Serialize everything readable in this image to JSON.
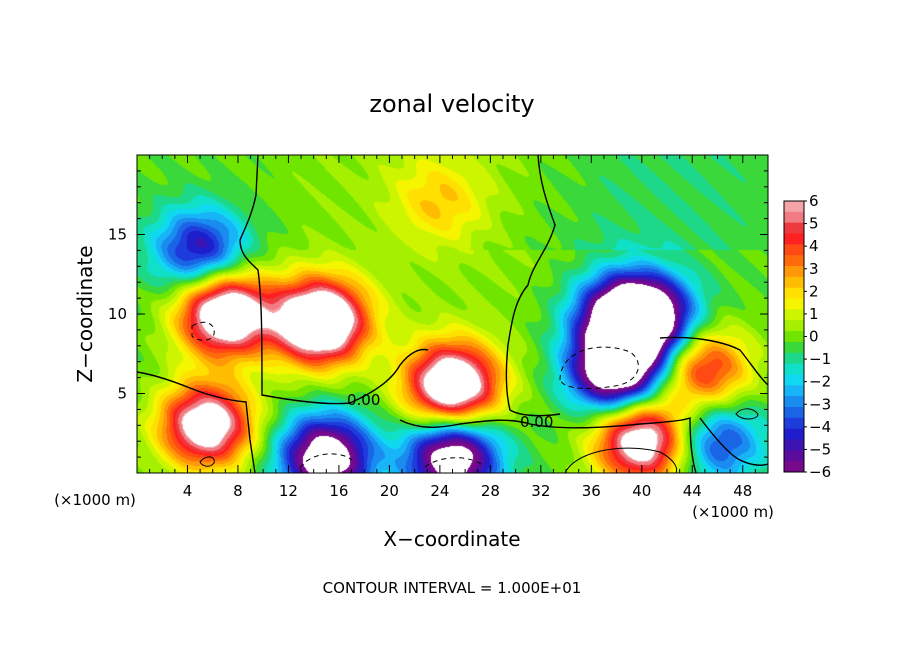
{
  "chart_data": {
    "type": "heatmap",
    "title": "zonal velocity",
    "xlabel": "X−coordinate",
    "ylabel": "Z−coordinate",
    "x_unit_left": "(×1000 m)",
    "x_unit_right": "(×1000 m)",
    "x_ticks": [
      "4",
      "8",
      "12",
      "16",
      "20",
      "24",
      "28",
      "32",
      "36",
      "40",
      "44",
      "48"
    ],
    "x_tick_values": [
      4,
      8,
      12,
      16,
      20,
      24,
      28,
      32,
      36,
      40,
      44,
      48
    ],
    "y_ticks": [
      "5",
      "10",
      "15"
    ],
    "y_tick_values": [
      5,
      10,
      15
    ],
    "xlim": [
      0,
      50
    ],
    "ylim": [
      0,
      20
    ],
    "colorbar": {
      "labels": [
        "6",
        "5",
        "4",
        "3",
        "2",
        "1",
        "0",
        "−1",
        "−2",
        "−3",
        "−4",
        "−5",
        "−6"
      ],
      "levels": [
        6,
        5.5,
        5,
        4.5,
        4,
        3.5,
        3,
        2.5,
        2,
        1.5,
        1,
        0.5,
        0,
        -0.5,
        -1,
        -1.5,
        -2,
        -2.5,
        -3,
        -3.5,
        -4,
        -4.5,
        -5,
        -5.5,
        -6
      ],
      "colors": [
        "#f4a3a6",
        "#f27a82",
        "#ee3a3e",
        "#ff2020",
        "#ff4a14",
        "#ff6a0a",
        "#ff9808",
        "#ffbc00",
        "#ffe000",
        "#f5f500",
        "#cdf500",
        "#a5f000",
        "#70e600",
        "#3ad83a",
        "#1ed88a",
        "#10e0c8",
        "#10d8f0",
        "#18b4f8",
        "#1a8cf0",
        "#1a64e6",
        "#1e3cdc",
        "#1e1ecc",
        "#3c14b4",
        "#5c0c9c",
        "#78088c"
      ]
    },
    "contour_labels": [
      "0.00",
      "0.00"
    ],
    "features": [
      {
        "x": 7,
        "z": 10,
        "value": 9
      },
      {
        "x": 14.5,
        "z": 9.5,
        "value": 10
      },
      {
        "x": 25,
        "z": 5.5,
        "value": 9
      },
      {
        "x": 38,
        "z": 6.5,
        "value": -9
      },
      {
        "x": 5.5,
        "z": 3,
        "value": 8
      },
      {
        "x": 15,
        "z": 1,
        "value": -8
      },
      {
        "x": 25,
        "z": 1,
        "value": -8
      },
      {
        "x": 40,
        "z": 2,
        "value": 8
      },
      {
        "x": 45,
        "z": 6.5,
        "value": 5
      },
      {
        "x": 38,
        "z": 10,
        "value": -5
      },
      {
        "x": 40.5,
        "z": 9.8,
        "value": -8
      },
      {
        "x": 5,
        "z": 14,
        "value": -5
      },
      {
        "x": 24,
        "z": 17,
        "value": 2
      },
      {
        "x": 46,
        "z": 2,
        "value": -4
      }
    ]
  },
  "footer_text": "CONTOUR INTERVAL = 1.000E+01"
}
